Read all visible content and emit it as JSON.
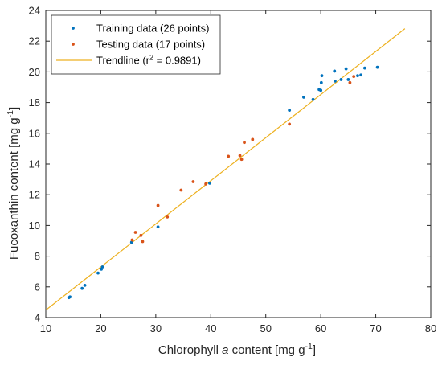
{
  "chart_data": {
    "type": "scatter",
    "xlabel_parts": [
      "Chlorophyll ",
      "a",
      " content [mg g",
      "-1",
      "]"
    ],
    "ylabel_parts": [
      "Fucoxanthin content [mg g",
      "-1",
      "]"
    ],
    "xlim": [
      10,
      80
    ],
    "ylim": [
      4,
      24
    ],
    "xticks": [
      10,
      20,
      30,
      40,
      50,
      60,
      70,
      80
    ],
    "yticks": [
      4,
      6,
      8,
      10,
      12,
      14,
      16,
      18,
      20,
      22,
      24
    ],
    "grid": false,
    "legend_position": "top-left",
    "series": [
      {
        "name": "Training data (26 points)",
        "color": "#0072BD",
        "marker": "dot",
        "points": [
          [
            14.2,
            5.3
          ],
          [
            14.4,
            5.35
          ],
          [
            16.6,
            5.9
          ],
          [
            17.1,
            6.1
          ],
          [
            19.5,
            6.9
          ],
          [
            20.1,
            7.15
          ],
          [
            20.3,
            7.3
          ],
          [
            25.6,
            8.9
          ],
          [
            30.4,
            9.9
          ],
          [
            39.8,
            12.75
          ],
          [
            54.3,
            17.5
          ],
          [
            56.9,
            18.35
          ],
          [
            58.6,
            18.2
          ],
          [
            59.7,
            18.85
          ],
          [
            60.0,
            18.8
          ],
          [
            60.1,
            19.3
          ],
          [
            60.2,
            19.75
          ],
          [
            62.5,
            20.05
          ],
          [
            62.6,
            19.4
          ],
          [
            63.7,
            19.5
          ],
          [
            64.6,
            20.2
          ],
          [
            65.0,
            19.5
          ],
          [
            66.7,
            19.75
          ],
          [
            67.3,
            19.8
          ],
          [
            68.0,
            20.25
          ],
          [
            70.3,
            20.3
          ]
        ]
      },
      {
        "name": "Testing data (17 points)",
        "color": "#D95319",
        "marker": "dot",
        "points": [
          [
            25.7,
            9.05
          ],
          [
            26.3,
            9.55
          ],
          [
            27.3,
            9.35
          ],
          [
            27.6,
            8.95
          ],
          [
            30.4,
            11.3
          ],
          [
            32.1,
            10.55
          ],
          [
            34.6,
            12.3
          ],
          [
            36.8,
            12.85
          ],
          [
            39.1,
            12.7
          ],
          [
            43.2,
            14.5
          ],
          [
            45.3,
            14.55
          ],
          [
            45.6,
            14.3
          ],
          [
            46.1,
            15.4
          ],
          [
            47.6,
            15.6
          ],
          [
            54.3,
            16.6
          ],
          [
            65.3,
            19.3
          ],
          [
            66.0,
            19.7
          ]
        ]
      }
    ],
    "trendline": {
      "name_parts": [
        "Trendline (r",
        "2",
        " = 0.9891)"
      ],
      "color": "#EDB120",
      "x_range": [
        10,
        75.3
      ],
      "slope": 0.2807,
      "intercept": 1.68
    }
  }
}
